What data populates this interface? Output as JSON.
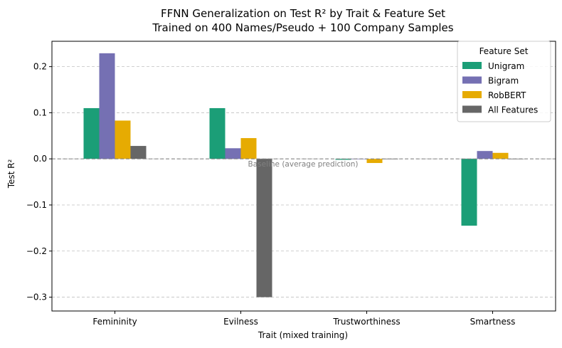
{
  "chart_data": {
    "type": "bar",
    "title": "FFNN Generalization on Test R² by Trait & Feature Set",
    "subtitle": "Trained on 400 Names/Pseudo + 100 Company Samples",
    "xlabel": "Trait (mixed training)",
    "ylabel": "Test R²",
    "categories": [
      "Femininity",
      "Evilness",
      "Trustworthiness",
      "Smartness"
    ],
    "series": [
      {
        "name": "Unigram",
        "color": "#1b9e77",
        "values": [
          0.11,
          0.11,
          -0.002,
          -0.145
        ]
      },
      {
        "name": "Bigram",
        "color": "#7570b3",
        "values": [
          0.229,
          0.023,
          0.0,
          0.017
        ]
      },
      {
        "name": "RobBERT",
        "color": "#e6ab02",
        "values": [
          0.083,
          0.045,
          -0.009,
          0.013
        ]
      },
      {
        "name": "All Features",
        "color": "#666666",
        "values": [
          0.028,
          -0.3,
          0.0,
          0.0
        ]
      }
    ],
    "ylim": [
      -0.33,
      0.255
    ],
    "yticks": [
      -0.3,
      -0.2,
      -0.1,
      0.0,
      0.1,
      0.2
    ],
    "ytick_labels": [
      "−0.3",
      "−0.2",
      "−0.1",
      "0.0",
      "0.1",
      "0.2"
    ],
    "grid": "y-dashed",
    "legend": {
      "title": "Feature Set",
      "placement": "top-right"
    },
    "baseline": {
      "value": 0.0,
      "label": "Baseline (average prediction)"
    }
  }
}
